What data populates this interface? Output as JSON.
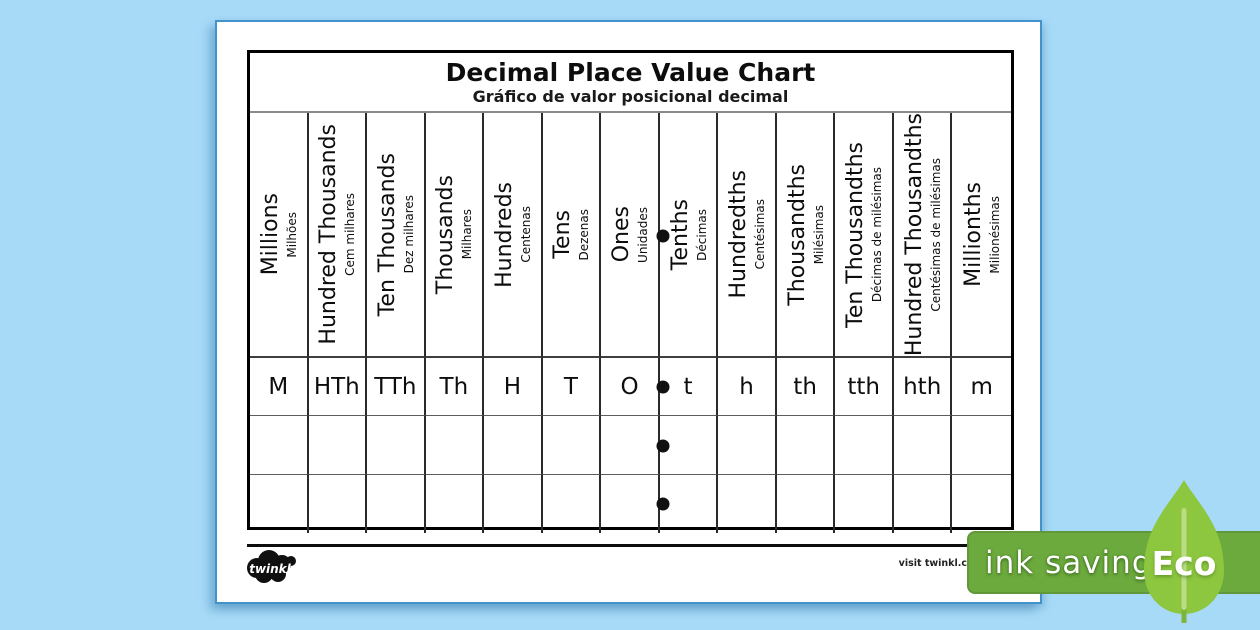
{
  "title": {
    "en": "Decimal Place Value Chart",
    "pt": "Gráfico de valor posicional decimal"
  },
  "columns": [
    {
      "en": "Millions",
      "pt": "Milhões",
      "abbr": "M"
    },
    {
      "en": "Hundred Thousands",
      "pt": "Cem milhares",
      "abbr": "HTh"
    },
    {
      "en": "Ten Thousands",
      "pt": "Dez milhares",
      "abbr": "TTh"
    },
    {
      "en": "Thousands",
      "pt": "Milhares",
      "abbr": "Th"
    },
    {
      "en": "Hundreds",
      "pt": "Centenas",
      "abbr": "H"
    },
    {
      "en": "Tens",
      "pt": "Dezenas",
      "abbr": "T"
    },
    {
      "en": "Ones",
      "pt": "Unidades",
      "abbr": "O"
    },
    {
      "en": "Tenths",
      "pt": "Décimas",
      "abbr": "t"
    },
    {
      "en": "Hundredths",
      "pt": "Centésimas",
      "abbr": "h"
    },
    {
      "en": "Thousandths",
      "pt": "Milésimas",
      "abbr": "th"
    },
    {
      "en": "Ten Thousandths",
      "pt": "Décimas de milésimas",
      "abbr": "tth"
    },
    {
      "en": "Hundred Thousandths",
      "pt": "Centésimas de milésimas",
      "abbr": "hth"
    },
    {
      "en": "Millionths",
      "pt": "Milionésimas",
      "abbr": "m"
    }
  ],
  "decimal_point": {
    "after_column": "Ones",
    "boundary_index": 7,
    "dot_row_count": 4
  },
  "empty_row_count": 2,
  "footer": {
    "logo_text": "twinkl",
    "visit_text": "visit twinkl.c",
    "badge_label": "ink saving",
    "eco_label": "Eco"
  },
  "colors": {
    "background": "#a7daf7",
    "paper": "#ffffff",
    "paper_edge": "#4293cb",
    "table_border": "#000000",
    "badge_green": "#6caa3e",
    "leaf_green": "#8dc63f",
    "leaf_stem_light": "#b9dc85",
    "leaf_stem_dark": "#7fb43c",
    "ink_text": "#0d0d0d"
  }
}
